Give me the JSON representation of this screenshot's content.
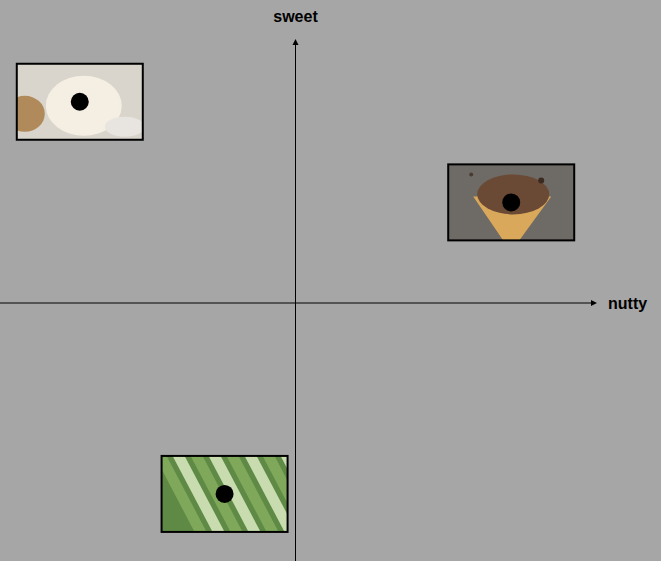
{
  "chart_data": {
    "type": "scatter",
    "x_label": "nutty",
    "y_label": "sweet",
    "x": [
      -7.3,
      7.3,
      -2.4
    ],
    "values": [
      7.8,
      3.9,
      -7.4
    ],
    "xlim": [
      -10,
      10
    ],
    "ylim": [
      -10,
      10
    ],
    "tick_labels": false,
    "grid": false,
    "color": "#000000",
    "marker": "circle"
  }
}
